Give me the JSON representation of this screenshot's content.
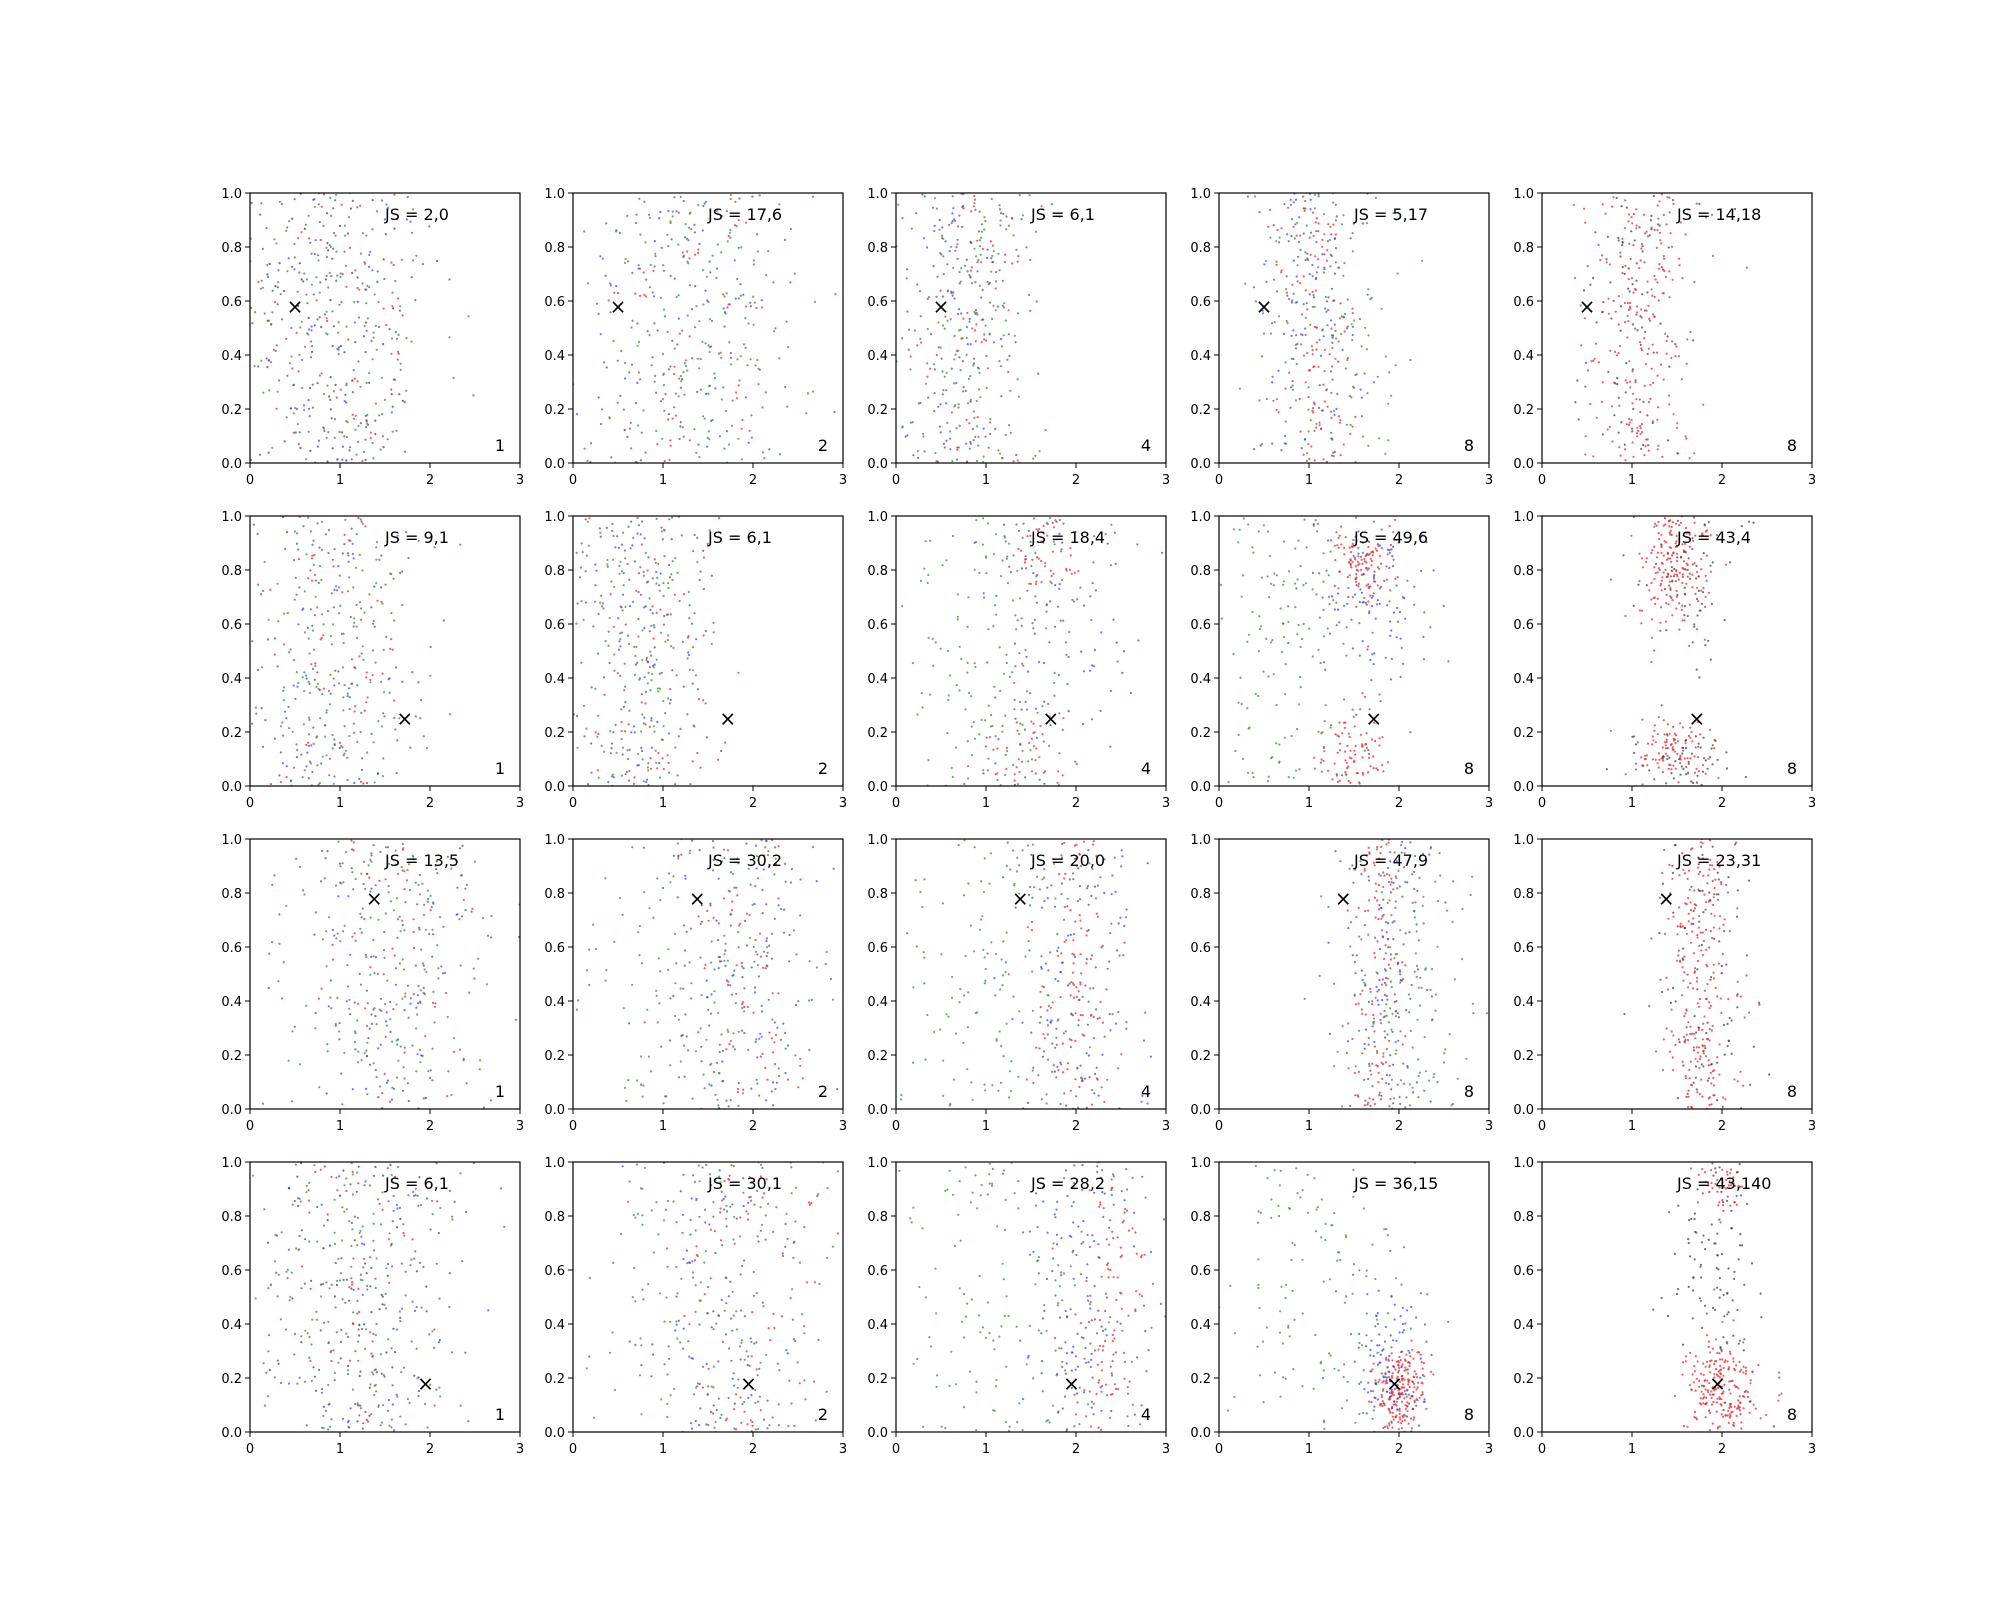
{
  "chart_data": {
    "type": "scatter",
    "grid": false,
    "rows": 4,
    "columns": 5,
    "xlim": [
      0,
      3
    ],
    "ylim": [
      0,
      1
    ],
    "x_ticks": [
      "0",
      "1",
      "2",
      "3"
    ],
    "y_ticks": [
      "0.0",
      "0.2",
      "0.4",
      "0.6",
      "0.8",
      "1.0"
    ],
    "colors": {
      "red": "#e41a1c",
      "green": "#228b22",
      "blue": "#1f3fff",
      "black": "#333333",
      "axes": "#000000"
    },
    "marker_label": "×",
    "panels": [
      {
        "row": 0,
        "col": 0,
        "js": "JS = 2,0",
        "n": "1",
        "marker": [
          0.5,
          0.58
        ]
      },
      {
        "row": 0,
        "col": 1,
        "js": "JS = 17,6",
        "n": "2",
        "marker": [
          0.5,
          0.58
        ]
      },
      {
        "row": 0,
        "col": 2,
        "js": "JS = 6,1",
        "n": "4",
        "marker": [
          0.5,
          0.58
        ]
      },
      {
        "row": 0,
        "col": 3,
        "js": "JS = 5,17",
        "n": "8",
        "marker": [
          0.5,
          0.58
        ]
      },
      {
        "row": 0,
        "col": 4,
        "js": "JS = 14,18",
        "n": "8",
        "marker": [
          0.5,
          0.58
        ]
      },
      {
        "row": 1,
        "col": 0,
        "js": "JS = 9,1",
        "n": "1",
        "marker": [
          1.72,
          0.25
        ]
      },
      {
        "row": 1,
        "col": 1,
        "js": "JS = 6,1",
        "n": "2",
        "marker": [
          1.72,
          0.25
        ]
      },
      {
        "row": 1,
        "col": 2,
        "js": "JS = 18,4",
        "n": "4",
        "marker": [
          1.72,
          0.25
        ]
      },
      {
        "row": 1,
        "col": 3,
        "js": "JS = 49,6",
        "n": "8",
        "marker": [
          1.72,
          0.25
        ]
      },
      {
        "row": 1,
        "col": 4,
        "js": "JS = 43,4",
        "n": "8",
        "marker": [
          1.72,
          0.25
        ]
      },
      {
        "row": 2,
        "col": 0,
        "js": "JS = 13,5",
        "n": "1",
        "marker": [
          1.38,
          0.78
        ]
      },
      {
        "row": 2,
        "col": 1,
        "js": "JS = 30,2",
        "n": "2",
        "marker": [
          1.38,
          0.78
        ]
      },
      {
        "row": 2,
        "col": 2,
        "js": "JS = 20,0",
        "n": "4",
        "marker": [
          1.38,
          0.78
        ]
      },
      {
        "row": 2,
        "col": 3,
        "js": "JS = 47,9",
        "n": "8",
        "marker": [
          1.38,
          0.78
        ]
      },
      {
        "row": 2,
        "col": 4,
        "js": "JS = 23,31",
        "n": "8",
        "marker": [
          1.38,
          0.78
        ]
      },
      {
        "row": 3,
        "col": 0,
        "js": "JS = 6,1",
        "n": "1",
        "marker": [
          1.95,
          0.18
        ]
      },
      {
        "row": 3,
        "col": 1,
        "js": "JS = 30,1",
        "n": "2",
        "marker": [
          1.95,
          0.18
        ]
      },
      {
        "row": 3,
        "col": 2,
        "js": "JS = 28,2",
        "n": "4",
        "marker": [
          1.95,
          0.18
        ]
      },
      {
        "row": 3,
        "col": 3,
        "js": "JS = 36,15",
        "n": "8",
        "marker": [
          1.95,
          0.18
        ]
      },
      {
        "row": 3,
        "col": 4,
        "js": "JS = 43,140",
        "n": "8",
        "marker": [
          1.95,
          0.18
        ]
      }
    ]
  }
}
